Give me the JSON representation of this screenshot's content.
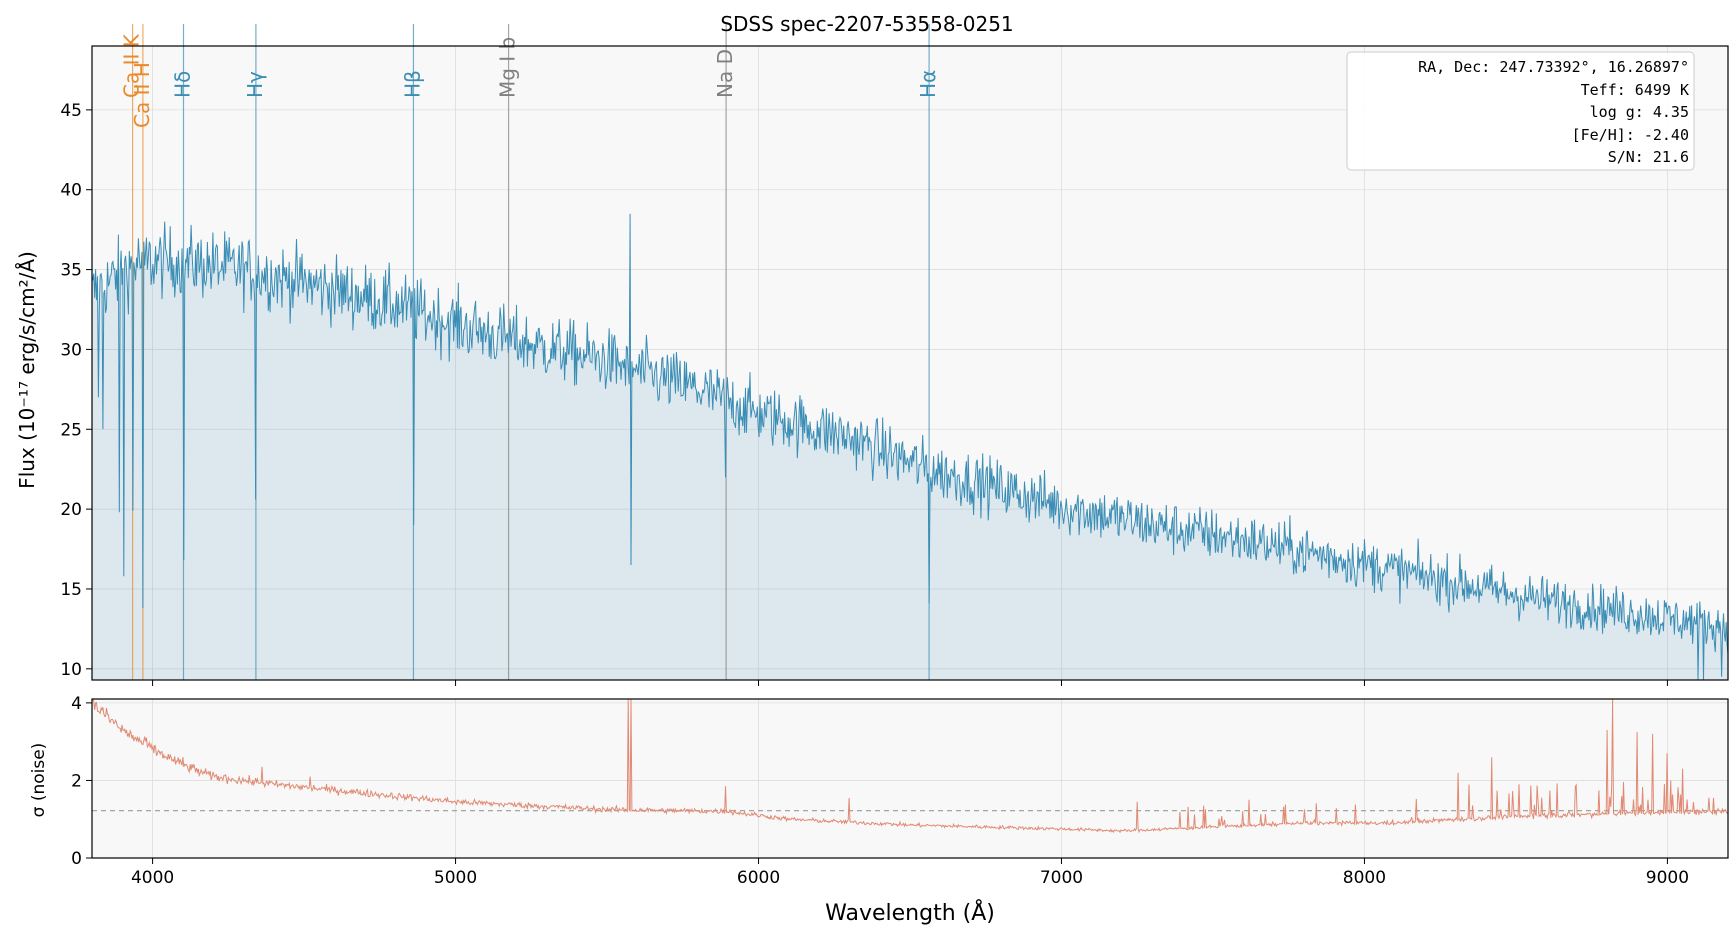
{
  "chart_data": [
    {
      "type": "line",
      "title": "SDSS spec-2207-53558-0251",
      "ylabel": "Flux (10⁻¹⁷ erg/s/cm²/Å)",
      "xlim": [
        3800,
        9200
      ],
      "ylim": [
        9.3,
        49
      ],
      "grid": true,
      "yticks": [
        10,
        15,
        20,
        25,
        30,
        35,
        40,
        45
      ],
      "xticks": [
        4000,
        5000,
        6000,
        7000,
        8000,
        9000
      ],
      "fill_under": true,
      "series": [
        {
          "color": "#3a8db5",
          "continuum_nodes": [
            [
              3800,
              33.5
            ],
            [
              3950,
              35.5
            ],
            [
              4100,
              35.5
            ],
            [
              4300,
              35
            ],
            [
              4500,
              34.2
            ],
            [
              4800,
              32.8
            ],
            [
              5000,
              31.6
            ],
            [
              5200,
              30.5
            ],
            [
              5500,
              29.3
            ],
            [
              5800,
              27.5
            ],
            [
              6000,
              26
            ],
            [
              6300,
              24.5
            ],
            [
              6560,
              22.5
            ],
            [
              6800,
              21.3
            ],
            [
              7000,
              20.2
            ],
            [
              7300,
              19
            ],
            [
              7600,
              18.1
            ],
            [
              8000,
              16.6
            ],
            [
              8300,
              15.4
            ],
            [
              8600,
              14.3
            ],
            [
              9000,
              13.2
            ],
            [
              9200,
              12.6
            ]
          ],
          "features": [
            [
              3820,
              27
            ],
            [
              3835,
              25
            ],
            [
              3889,
              19.8
            ],
            [
              3905,
              15.8
            ],
            [
              3934,
              19.9
            ],
            [
              3968,
              13.8
            ],
            [
              4102,
              16.8
            ],
            [
              4340,
              20.6
            ],
            [
              4861,
              19.0
            ],
            [
              5577,
              38.5
            ],
            [
              5578,
              16.5
            ],
            [
              5890,
              22
            ],
            [
              6563,
              14.1
            ],
            [
              9100,
              9.3
            ],
            [
              9120,
              9.3
            ],
            [
              9180,
              9.5
            ]
          ]
        }
      ],
      "line_markers": [
        {
          "label": "Ca II K",
          "x": 3934,
          "color": "#e8892a"
        },
        {
          "label": "Ca II H",
          "x": 3968,
          "color": "#e8892a"
        },
        {
          "label": "Hδ",
          "x": 4102,
          "color": "#3a8db5"
        },
        {
          "label": "Hγ",
          "x": 4341,
          "color": "#3a8db5"
        },
        {
          "label": "Hβ",
          "x": 4861,
          "color": "#3a8db5"
        },
        {
          "label": "Mg I b",
          "x": 5175,
          "color": "#808080"
        },
        {
          "label": "Na D",
          "x": 5893,
          "color": "#808080"
        },
        {
          "label": "Hα",
          "x": 6563,
          "color": "#3a8db5"
        }
      ],
      "info_box": [
        "RA, Dec: 247.73392°, 16.26897°",
        "Teff: 6499 K",
        "log g: 4.35",
        "[Fe/H]: -2.40",
        "S/N: 21.6"
      ]
    },
    {
      "type": "line",
      "xlabel": "Wavelength (Å)",
      "ylabel": "σ (noise)",
      "xlim": [
        3800,
        9200
      ],
      "ylim": [
        0,
        4.1
      ],
      "grid": true,
      "yticks": [
        0,
        2,
        4
      ],
      "xticks": [
        4000,
        5000,
        6000,
        7000,
        8000,
        9000
      ],
      "reference_line": {
        "y": 1.22,
        "style": "dashed",
        "color": "#999999"
      },
      "series": [
        {
          "color": "#e08a73",
          "continuum_nodes": [
            [
              3800,
              4.0
            ],
            [
              3900,
              3.3
            ],
            [
              4000,
              2.8
            ],
            [
              4100,
              2.4
            ],
            [
              4200,
              2.1
            ],
            [
              4400,
              1.9
            ],
            [
              4600,
              1.75
            ],
            [
              5000,
              1.45
            ],
            [
              5500,
              1.25
            ],
            [
              5900,
              1.2
            ],
            [
              6100,
              1.0
            ],
            [
              6500,
              0.85
            ],
            [
              7000,
              0.75
            ],
            [
              7200,
              0.7
            ],
            [
              7500,
              0.8
            ],
            [
              7800,
              0.9
            ],
            [
              8100,
              0.9
            ],
            [
              8300,
              1.0
            ],
            [
              8600,
              1.1
            ],
            [
              9200,
              1.2
            ]
          ],
          "features": [
            [
              3980,
              3.1
            ],
            [
              4100,
              2.6
            ],
            [
              4360,
              2.35
            ],
            [
              4520,
              2.1
            ],
            [
              5570,
              4.15
            ],
            [
              5580,
              4.15
            ],
            [
              5890,
              1.85
            ],
            [
              6300,
              1.55
            ],
            [
              7250,
              1.45
            ],
            [
              7620,
              1.5
            ],
            [
              8310,
              2.2
            ],
            [
              8420,
              2.6
            ],
            [
              8800,
              3.3
            ],
            [
              8820,
              4.15
            ],
            [
              8900,
              3.25
            ],
            [
              8950,
              3.2
            ],
            [
              9000,
              2.7
            ],
            [
              9050,
              2.3
            ]
          ]
        }
      ]
    }
  ]
}
